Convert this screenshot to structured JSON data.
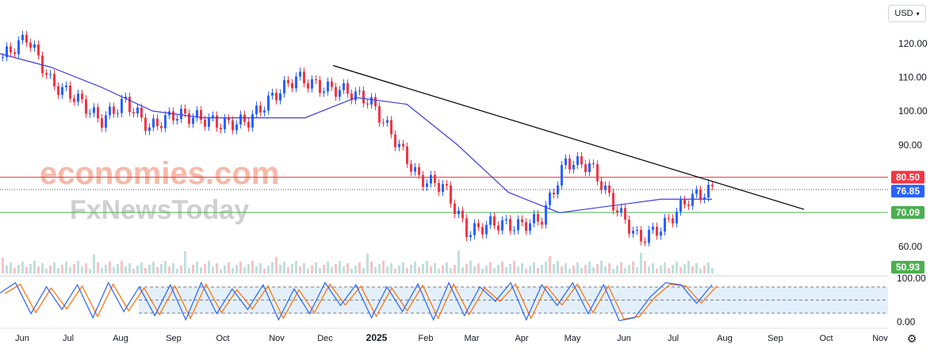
{
  "currency_selector": {
    "label": "USD"
  },
  "watermark": {
    "line1": "economies.com",
    "line2": "FxNewsToday"
  },
  "colors": {
    "up": "#2962ff",
    "down": "#f23645",
    "ma": "#3f3fe0",
    "trend": "#000000",
    "resistance": "#f23645",
    "support": "#4caf50",
    "last_price": "#2962ff",
    "volume_up": "#bfe0dc",
    "volume_down": "#f7c2c5",
    "stoch_k": "#2962ff",
    "stoch_d": "#ff6d00"
  },
  "settings_icon": "gear-icon",
  "chart_data": [
    {
      "type": "candlestick",
      "ylim": [
        55,
        128
      ],
      "y_ticks": [
        "120.00",
        "110.00",
        "100.00",
        "90.00",
        "60.00"
      ],
      "x_ticks": [
        "Jun",
        "Jul",
        "Aug",
        "Sep",
        "Oct",
        "Nov",
        "Dec",
        "2025",
        "Feb",
        "Mar",
        "Apr",
        "May",
        "Jun",
        "Jul",
        "Aug",
        "Sep",
        "Oct",
        "Nov"
      ],
      "price_labels": [
        {
          "name": "resistance",
          "value": 80.5,
          "text": "80.50"
        },
        {
          "name": "last_price",
          "value": 76.85,
          "text": "76.85"
        },
        {
          "name": "support",
          "value": 70.09,
          "text": "70.09"
        },
        {
          "name": "volume",
          "value": 50.93,
          "text": "50.93"
        }
      ],
      "price_path": [
        [
          "Jun",
          116
        ],
        [
          "Jun",
          122
        ],
        [
          "Jul",
          108
        ],
        [
          "Jul",
          104
        ],
        [
          "Aug",
          97
        ],
        [
          "Aug",
          103
        ],
        [
          "Sep",
          95
        ],
        [
          "Sep",
          99
        ],
        [
          "Oct",
          98
        ],
        [
          "Oct",
          96
        ],
        [
          "Nov",
          97
        ],
        [
          "Nov",
          104
        ],
        [
          "Dec",
          110
        ],
        [
          "Dec",
          107
        ],
        [
          "2025",
          106
        ],
        [
          "2025",
          103
        ],
        [
          "Feb",
          92
        ],
        [
          "Feb",
          80
        ],
        [
          "Mar",
          78
        ],
        [
          "Mar",
          64
        ],
        [
          "Apr",
          67
        ],
        [
          "Apr",
          66
        ],
        [
          "May",
          68
        ],
        [
          "May",
          85
        ],
        [
          "Jun",
          84
        ],
        [
          "Jun",
          72
        ],
        [
          "Jun",
          62
        ],
        [
          "Jul",
          66
        ],
        [
          "Jul",
          74
        ],
        [
          "Jul",
          76.85
        ]
      ],
      "moving_average_path": [
        [
          "Jun",
          117
        ],
        [
          "Jul",
          113
        ],
        [
          "Aug",
          107
        ],
        [
          "Sep",
          100
        ],
        [
          "Oct",
          98
        ],
        [
          "Nov",
          98
        ],
        [
          "Dec",
          98
        ],
        [
          "2025",
          104
        ],
        [
          "Feb",
          102
        ],
        [
          "Mar",
          90
        ],
        [
          "Apr",
          76
        ],
        [
          "May",
          70
        ],
        [
          "Jun",
          72
        ],
        [
          "Jul",
          74
        ],
        [
          "Jul",
          74
        ]
      ],
      "trendline": {
        "start": [
          "Dec",
          113.5
        ],
        "end": [
          "Oct",
          71
        ]
      },
      "horizontal_lines": [
        {
          "name": "resistance",
          "value": 80.5
        },
        {
          "name": "last_price",
          "value": 76.85
        },
        {
          "name": "support",
          "value": 70.09
        }
      ]
    },
    {
      "type": "stochastic",
      "ylim": [
        0,
        100
      ],
      "y_ticks": [
        "100.00",
        "0.00"
      ],
      "levels": [
        80,
        50,
        20
      ],
      "k_path": [
        70,
        95,
        20,
        85,
        30,
        90,
        10,
        95,
        25,
        85,
        15,
        90,
        5,
        95,
        20,
        80,
        30,
        90,
        5,
        80,
        20,
        95,
        40,
        90,
        10,
        85,
        25,
        92,
        5,
        95,
        15,
        85,
        50,
        95,
        5,
        90,
        40,
        95,
        20,
        90,
        3,
        10,
        60,
        95,
        90,
        45,
        90
      ]
    }
  ]
}
